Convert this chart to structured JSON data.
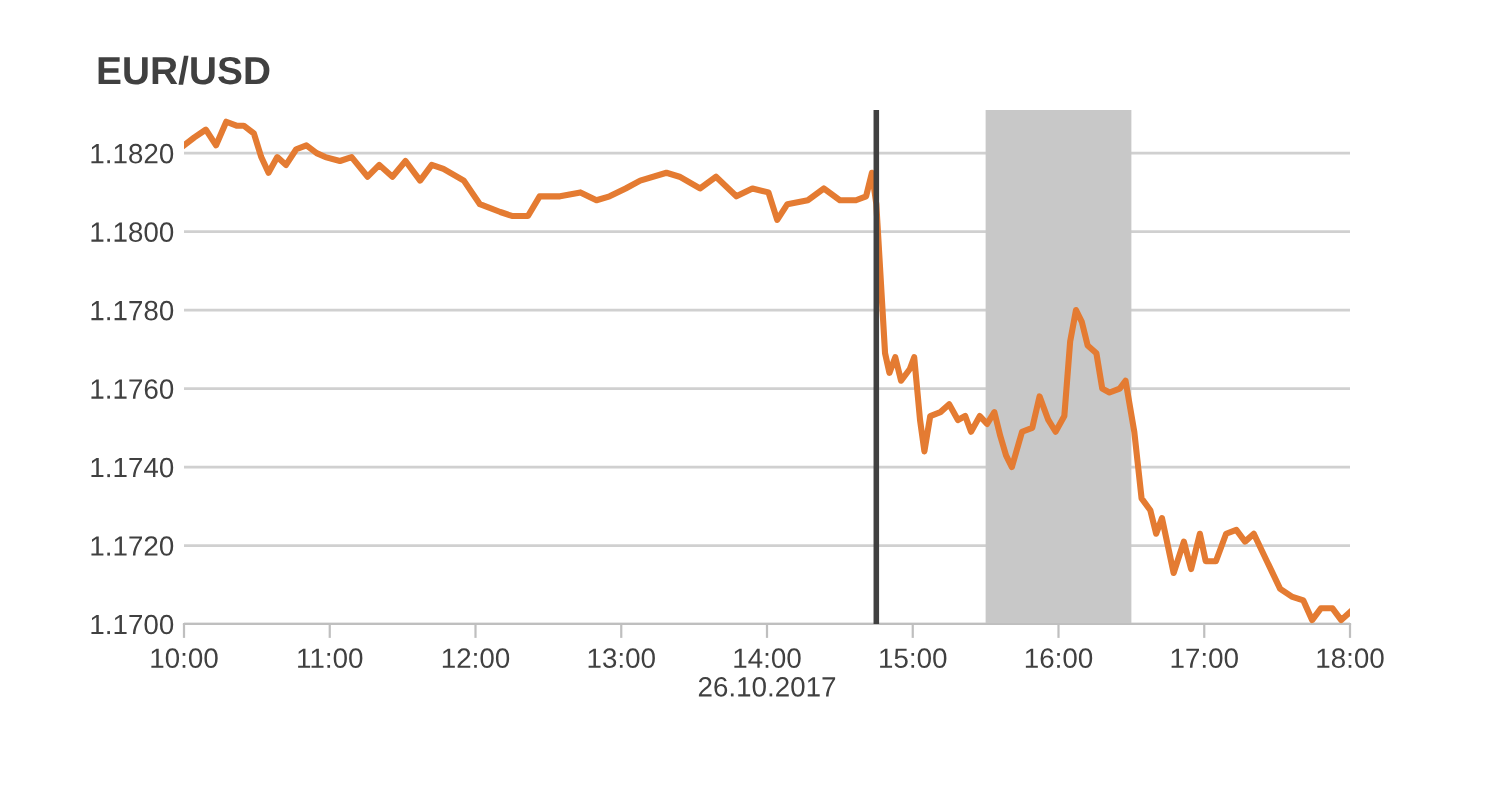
{
  "chart_data": {
    "type": "line",
    "title": "EUR/USD",
    "xlabel": "26.10.2017",
    "x": [
      10.0,
      10.07,
      10.15,
      10.22,
      10.29,
      10.36,
      10.41,
      10.48,
      10.53,
      10.58,
      10.64,
      10.7,
      10.77,
      10.84,
      10.91,
      10.97,
      11.07,
      11.15,
      11.26,
      11.34,
      11.43,
      11.52,
      11.62,
      11.7,
      11.78,
      11.92,
      12.03,
      12.17,
      12.25,
      12.36,
      12.44,
      12.58,
      12.72,
      12.83,
      12.92,
      13.03,
      13.13,
      13.31,
      13.4,
      13.54,
      13.65,
      13.79,
      13.9,
      14.01,
      14.07,
      14.14,
      14.28,
      14.39,
      14.5,
      14.61,
      14.68,
      14.72,
      14.75,
      14.81,
      14.84,
      14.88,
      14.92,
      14.98,
      15.01,
      15.05,
      15.08,
      15.12,
      15.19,
      15.25,
      15.31,
      15.36,
      15.4,
      15.46,
      15.51,
      15.56,
      15.6,
      15.64,
      15.68,
      15.75,
      15.82,
      15.87,
      15.93,
      15.98,
      16.04,
      16.08,
      16.12,
      16.16,
      16.2,
      16.26,
      16.3,
      16.35,
      16.42,
      16.46,
      16.52,
      16.57,
      16.63,
      16.67,
      16.71,
      16.79,
      16.86,
      16.91,
      16.97,
      17.01,
      17.08,
      17.15,
      17.22,
      17.28,
      17.34,
      17.43,
      17.52,
      17.6,
      17.68,
      17.74,
      17.8,
      17.88,
      17.94,
      18.0
    ],
    "series": [
      {
        "color": "#e47b32",
        "values": [
          1.1822,
          1.1824,
          1.1826,
          1.1822,
          1.1828,
          1.1827,
          1.1827,
          1.1825,
          1.1819,
          1.1815,
          1.1819,
          1.1817,
          1.1821,
          1.1822,
          1.182,
          1.1819,
          1.1818,
          1.1819,
          1.1814,
          1.1817,
          1.1814,
          1.1818,
          1.1813,
          1.1817,
          1.1816,
          1.1813,
          1.1807,
          1.1805,
          1.1804,
          1.1804,
          1.1809,
          1.1809,
          1.181,
          1.1808,
          1.1809,
          1.1811,
          1.1813,
          1.1815,
          1.1814,
          1.1811,
          1.1814,
          1.1809,
          1.1811,
          1.181,
          1.1803,
          1.1807,
          1.1808,
          1.1811,
          1.1808,
          1.1808,
          1.1809,
          1.1815,
          1.1807,
          1.1769,
          1.1764,
          1.1768,
          1.1762,
          1.1765,
          1.1768,
          1.1752,
          1.1744,
          1.1753,
          1.1754,
          1.1756,
          1.1752,
          1.1753,
          1.1749,
          1.1753,
          1.1751,
          1.1754,
          1.1748,
          1.1743,
          1.174,
          1.1749,
          1.175,
          1.1758,
          1.1752,
          1.1749,
          1.1753,
          1.1772,
          1.178,
          1.1777,
          1.1771,
          1.1769,
          1.176,
          1.1759,
          1.176,
          1.1762,
          1.1749,
          1.1732,
          1.1729,
          1.1723,
          1.1727,
          1.1713,
          1.1721,
          1.1714,
          1.1723,
          1.1716,
          1.1716,
          1.1723,
          1.1724,
          1.1721,
          1.1723,
          1.1716,
          1.1709,
          1.1707,
          1.1706,
          1.1701,
          1.1704,
          1.1704,
          1.1701,
          1.1703
        ]
      }
    ],
    "xlim": [
      10,
      18
    ],
    "ylim": [
      1.17,
      1.1831
    ],
    "xticks": [
      {
        "value": 10,
        "label": "10:00"
      },
      {
        "value": 11,
        "label": "11:00"
      },
      {
        "value": 12,
        "label": "12:00"
      },
      {
        "value": 13,
        "label": "13:00"
      },
      {
        "value": 14,
        "label": "14:00"
      },
      {
        "value": 15,
        "label": "15:00"
      },
      {
        "value": 16,
        "label": "16:00"
      },
      {
        "value": 17,
        "label": "17:00"
      },
      {
        "value": 18,
        "label": "18:00"
      }
    ],
    "yticks": [
      {
        "value": 1.17,
        "label": "1.1700"
      },
      {
        "value": 1.172,
        "label": "1.1720"
      },
      {
        "value": 1.174,
        "label": "1.1740"
      },
      {
        "value": 1.176,
        "label": "1.1760"
      },
      {
        "value": 1.178,
        "label": "1.1780"
      },
      {
        "value": 1.18,
        "label": "1.1800"
      },
      {
        "value": 1.182,
        "label": "1.1820"
      }
    ],
    "ref_lines": [
      {
        "axis": "x",
        "value": 14.75,
        "color": "#404040"
      }
    ],
    "bands": [
      {
        "axis": "x",
        "from": 15.5,
        "to": 16.5,
        "color": "#c8c8c8"
      }
    ],
    "grid": "y",
    "marker": "none",
    "line_style": "solid"
  }
}
